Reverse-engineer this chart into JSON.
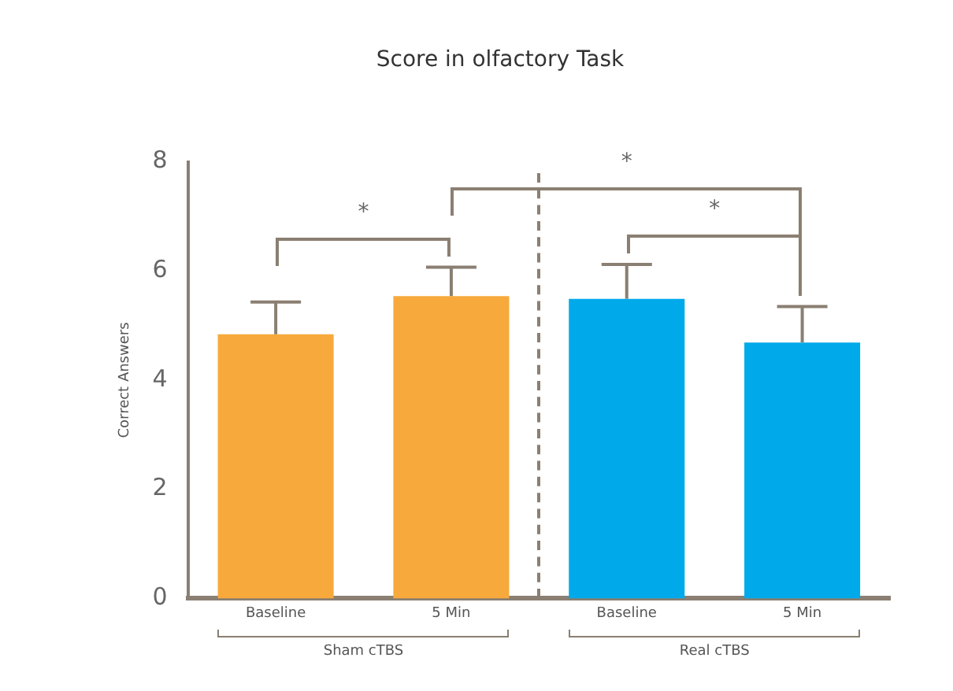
{
  "chart_data": {
    "type": "bar",
    "title": "Score in olfactory Task",
    "ylabel": "Correct Answers",
    "categories": [
      "Baseline",
      "5 Min",
      "Baseline",
      "5 Min"
    ],
    "values": [
      4.84,
      5.54,
      5.49,
      4.69
    ],
    "colors": [
      "#f7a93b",
      "#f7a93b",
      "#00aaea",
      "#00aaea"
    ],
    "errors": [
      [
        4.84,
        5.43
      ],
      [
        5.54,
        6.07
      ],
      [
        5.49,
        6.12
      ],
      [
        4.69,
        5.35
      ]
    ],
    "ylim": [
      0,
      8
    ],
    "yticks": [
      0,
      2,
      4,
      6,
      8
    ],
    "grid": false,
    "legend": false,
    "annotations": [
      "*",
      "*",
      "*",
      "Sham cTBS",
      "Real cTBS"
    ]
  }
}
